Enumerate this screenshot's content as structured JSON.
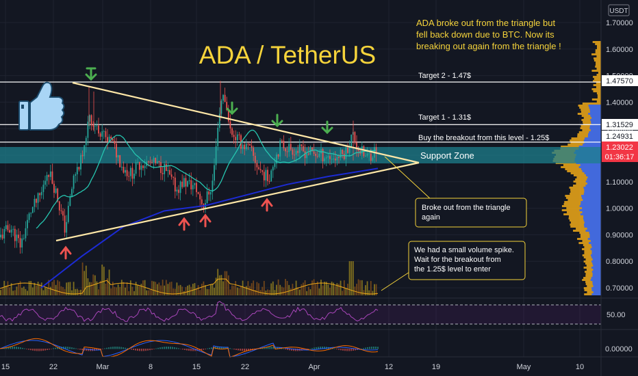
{
  "chart_data": {
    "type": "candlestick",
    "title": "ADA / TetherUS",
    "currency_label": "USDT",
    "x_ticks": [
      "15",
      "22",
      "Mar",
      "8",
      "15",
      "22",
      "Apr",
      "12",
      "19",
      "May",
      "10"
    ],
    "y_ticks": [
      "1.70000",
      "1.60000",
      "1.50000",
      "1.40000",
      "1.30000",
      "1.20000",
      "1.10000",
      "1.00000",
      "0.90000",
      "0.80000",
      "0.70000"
    ],
    "ylim": [
      0.68,
      1.75
    ],
    "price_badges": [
      {
        "value": "1.47570",
        "style": "white"
      },
      {
        "value": "1.31529",
        "style": "white"
      },
      {
        "value": "1.24931",
        "style": "white"
      },
      {
        "value": "1.23022",
        "style": "red"
      },
      {
        "value": "01:36:17",
        "style": "red"
      }
    ],
    "levels": [
      {
        "price": 1.4757,
        "label": "Target 2 - 1.47$"
      },
      {
        "price": 1.31529,
        "label": "Target 1 - 1.31$"
      },
      {
        "price": 1.24931,
        "label": "Buy the breakout from this level - 1.25$"
      }
    ],
    "support_zone": {
      "label": "Support Zone",
      "low": 1.16,
      "high": 1.235
    },
    "annotations": {
      "top": [
        "ADA broke out from the triangle but",
        "fell back down due to BTC. Now its",
        "breaking out again from the triangle !"
      ],
      "breakout": [
        "Broke out from the triangle",
        "again"
      ],
      "volume": [
        "We had a small volume spike.",
        "Wait for the breakout from",
        "the 1.25$ level to enter"
      ]
    },
    "rsi": {
      "label": "50.00",
      "upper": 70,
      "lower": 30
    },
    "macd": {
      "label": "0.00000"
    },
    "colors": {
      "up": "#26a69a",
      "down": "#ef5350",
      "accent": "#f5d33b",
      "triangle": "#ffe8a8",
      "ema": "#1c2bd4",
      "sma": "#26c6b0",
      "zone": "#1d7f8c",
      "bg": "#131722",
      "rsi": "#8e24aa",
      "vp_up": "#2962ff",
      "vp_down": "#f0a917"
    },
    "icons": [
      "thumbs-up-icon",
      "green-arrow-down-icon",
      "red-arrow-up-icon"
    ]
  }
}
